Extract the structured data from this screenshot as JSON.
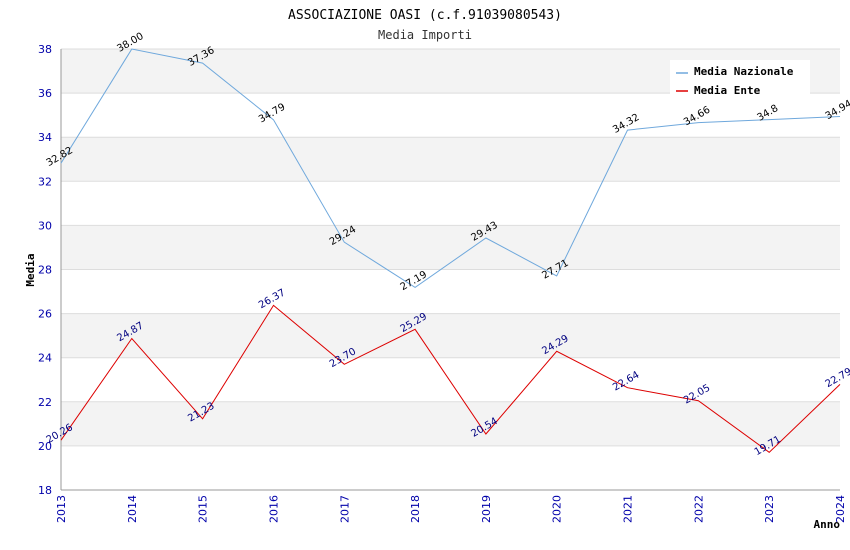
{
  "chart_data": {
    "type": "line",
    "title": "ASSOCIAZIONE OASI (c.f.91039080543)",
    "subtitle": "Media Importi",
    "xlabel": "Anno",
    "ylabel": "Media",
    "ylim": [
      18,
      38
    ],
    "yticks": [
      18,
      20,
      22,
      24,
      26,
      28,
      30,
      32,
      34,
      36,
      38
    ],
    "categories": [
      "2013",
      "2014",
      "2015",
      "2016",
      "2017",
      "2018",
      "2019",
      "2020",
      "2021",
      "2022",
      "2023",
      "2024"
    ],
    "grid": true,
    "legend_position": "top-right",
    "series": [
      {
        "name": "Media Nazionale",
        "color": "#6fa8dc",
        "values": [
          32.82,
          38.0,
          37.36,
          34.79,
          29.24,
          27.19,
          29.43,
          27.71,
          34.32,
          34.66,
          34.8,
          34.94
        ],
        "labels": [
          "32.82",
          "38.00",
          "37.36",
          "34.79",
          "29.24",
          "27.19",
          "29.43",
          "27.71",
          "34.32",
          "34.66",
          "34.8",
          "34.94"
        ]
      },
      {
        "name": "Media Ente",
        "color": "#dd0000",
        "values": [
          20.26,
          24.87,
          21.23,
          26.37,
          23.7,
          25.29,
          20.54,
          24.29,
          22.64,
          22.05,
          19.71,
          22.79
        ],
        "labels": [
          "20.26",
          "24.87",
          "21.23",
          "26.37",
          "23.70",
          "25.29",
          "20.54",
          "24.29",
          "22.64",
          "22.05",
          "19.71",
          "22.79"
        ]
      }
    ]
  }
}
